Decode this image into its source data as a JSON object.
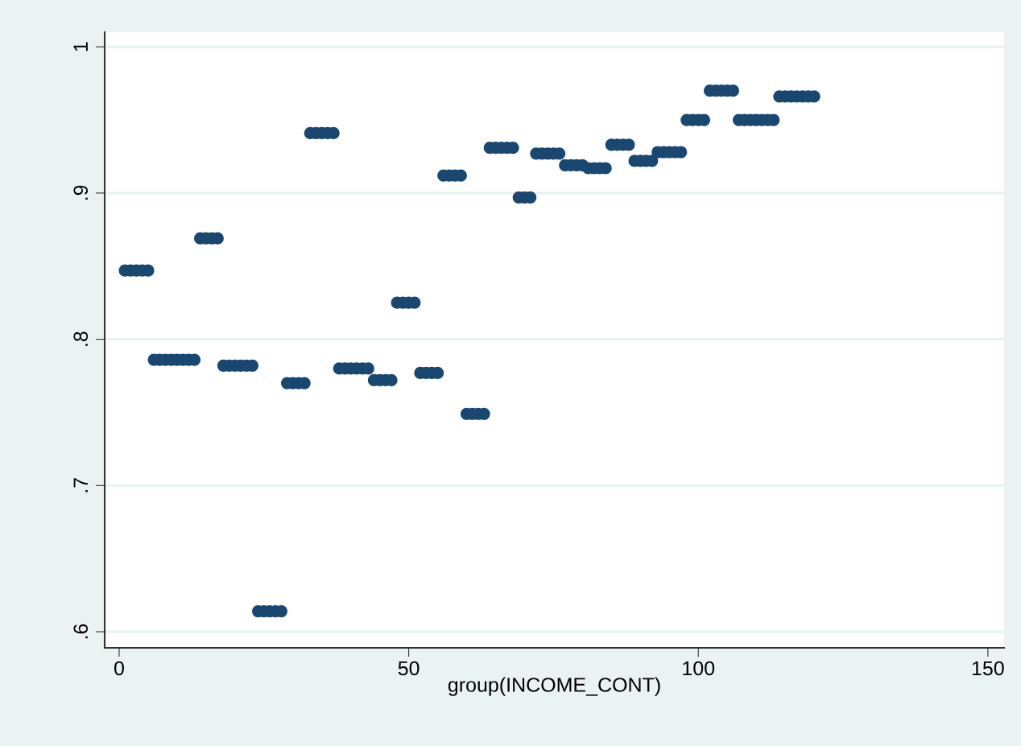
{
  "chart_data": {
    "type": "scatter",
    "xlabel": "group(INCOME_CONT)",
    "x": [
      1,
      2,
      3,
      4,
      5,
      6,
      7,
      8,
      9,
      10,
      11,
      12,
      13,
      14,
      15,
      16,
      17,
      18,
      19,
      20,
      21,
      22,
      23,
      24,
      25,
      26,
      27,
      28,
      29,
      30,
      31,
      32,
      33,
      34,
      35,
      36,
      37,
      38,
      39,
      40,
      41,
      42,
      43,
      44,
      45,
      46,
      47,
      48,
      49,
      50,
      51,
      52,
      53,
      54,
      55,
      56,
      57,
      58,
      59,
      60,
      61,
      62,
      63,
      64,
      65,
      66,
      67,
      68,
      69,
      70,
      71,
      72,
      73,
      74,
      75,
      76,
      77,
      78,
      79,
      80,
      81,
      82,
      83,
      84,
      85,
      86,
      87,
      88,
      89,
      90,
      91,
      92,
      93,
      94,
      95,
      96,
      97,
      98,
      99,
      100,
      101,
      102,
      103,
      104,
      105,
      106,
      107,
      108,
      109,
      110,
      111,
      112,
      113,
      114,
      115,
      116,
      117,
      118,
      119,
      120
    ],
    "series": [
      {
        "color": "#1a476f",
        "values": [
          0.847,
          0.847,
          0.847,
          0.847,
          0.847,
          0.786,
          0.786,
          0.786,
          0.786,
          0.786,
          0.786,
          0.786,
          0.786,
          0.869,
          0.869,
          0.869,
          0.869,
          0.782,
          0.782,
          0.782,
          0.782,
          0.782,
          0.782,
          0.614,
          0.614,
          0.614,
          0.614,
          0.614,
          0.77,
          0.77,
          0.77,
          0.77,
          0.941,
          0.941,
          0.941,
          0.941,
          0.941,
          0.78,
          0.78,
          0.78,
          0.78,
          0.78,
          0.78,
          0.772,
          0.772,
          0.772,
          0.772,
          0.825,
          0.825,
          0.825,
          0.825,
          0.777,
          0.777,
          0.777,
          0.777,
          0.912,
          0.912,
          0.912,
          0.912,
          0.749,
          0.749,
          0.749,
          0.749,
          0.931,
          0.931,
          0.931,
          0.931,
          0.931,
          0.897,
          0.897,
          0.897,
          0.927,
          0.927,
          0.927,
          0.927,
          0.927,
          0.919,
          0.919,
          0.919,
          0.919,
          0.917,
          0.917,
          0.917,
          0.917,
          0.933,
          0.933,
          0.933,
          0.933,
          0.922,
          0.922,
          0.922,
          0.922,
          0.928,
          0.928,
          0.928,
          0.928,
          0.928,
          0.95,
          0.95,
          0.95,
          0.95,
          0.97,
          0.97,
          0.97,
          0.97,
          0.97,
          0.95,
          0.95,
          0.95,
          0.95,
          0.95,
          0.95,
          0.95,
          0.966,
          0.966,
          0.966,
          0.966,
          0.966,
          0.966,
          0.966
        ]
      }
    ],
    "xlim": [
      -2.5,
      152.8
    ],
    "ylim": [
      0.589,
      1.01
    ],
    "xticks": [
      0,
      50,
      100,
      150
    ],
    "yticks": [
      {
        "value": 0.6,
        "label": ".6"
      },
      {
        "value": 0.7,
        "label": ".7"
      },
      {
        "value": 0.8,
        "label": ".8"
      },
      {
        "value": 0.9,
        "label": ".9"
      },
      {
        "value": 1,
        "label": "1"
      }
    ],
    "grid": "y",
    "marker": "circle",
    "legend": false
  }
}
